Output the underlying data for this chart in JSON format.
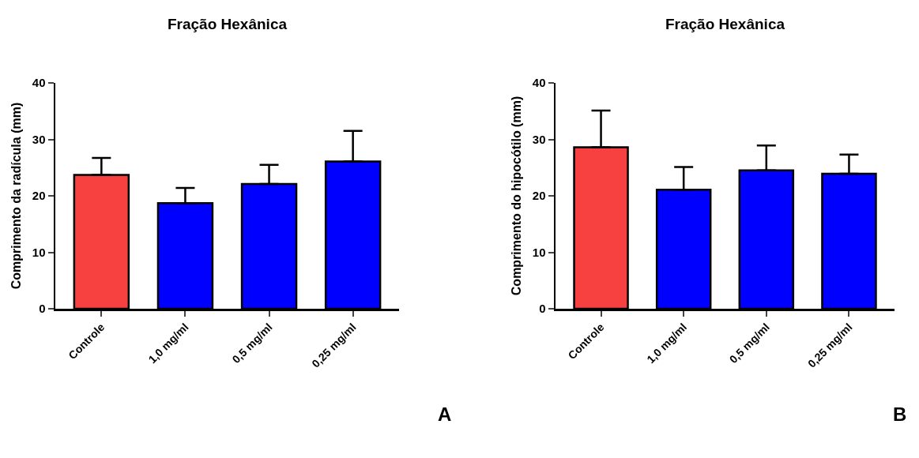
{
  "chart_data": [
    {
      "type": "bar",
      "title": "Fração Hexânica",
      "ylabel": "Comprimento da radícula (mm)",
      "categories": [
        "Controle",
        "1,0 mg/ml",
        "0,5 mg/ml",
        "0,25 mg/ml"
      ],
      "values": [
        23.7,
        18.7,
        22.1,
        26.1
      ],
      "colors": [
        "#f74040",
        "#0000ff",
        "#0000ff",
        "#0000ff"
      ],
      "errors": [
        [
          23.7,
          26.7
        ],
        [
          18.7,
          21.4
        ],
        [
          22.1,
          25.5
        ],
        [
          26.1,
          31.5
        ]
      ],
      "ylim": [
        0,
        40
      ],
      "yticks": [
        0,
        10,
        20,
        30,
        40
      ],
      "grid": false,
      "annotations": [
        "A"
      ]
    },
    {
      "type": "bar",
      "title": "Fração Hexânica",
      "ylabel": "Comprimento do hipocótilo (mm)",
      "categories": [
        "Controle",
        "1,0 mg/ml",
        "0,5 mg/ml",
        "0,25 mg/ml"
      ],
      "values": [
        28.6,
        21.1,
        24.5,
        23.9
      ],
      "colors": [
        "#f74040",
        "#0000ff",
        "#0000ff",
        "#0000ff"
      ],
      "errors": [
        [
          28.6,
          35.1
        ],
        [
          21.1,
          25.1
        ],
        [
          24.5,
          28.9
        ],
        [
          23.9,
          27.3
        ]
      ],
      "ylim": [
        0,
        40
      ],
      "yticks": [
        0,
        10,
        20,
        30,
        40
      ],
      "grid": false,
      "annotations": [
        "B"
      ]
    }
  ]
}
